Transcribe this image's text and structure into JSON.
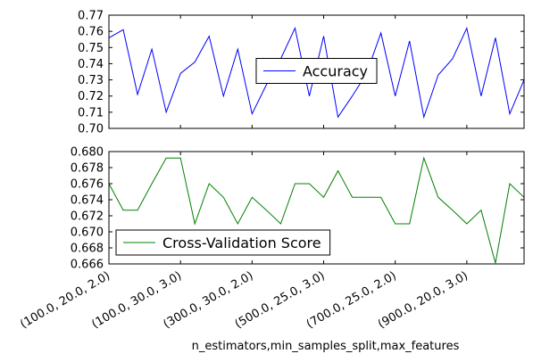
{
  "chart_data": [
    {
      "type": "line",
      "series": [
        {
          "name": "Accuracy",
          "color": "#0000ff",
          "values": [
            0.756,
            0.761,
            0.721,
            0.749,
            0.71,
            0.734,
            0.741,
            0.757,
            0.72,
            0.749,
            0.709,
            0.727,
            0.743,
            0.762,
            0.72,
            0.757,
            0.707,
            0.72,
            0.734,
            0.759,
            0.72,
            0.754,
            0.707,
            0.733,
            0.743,
            0.762,
            0.72,
            0.756,
            0.709,
            0.73
          ]
        }
      ],
      "ylim": [
        0.7,
        0.77
      ],
      "yticks": [
        {
          "value": 0.7,
          "label": "0.70"
        },
        {
          "value": 0.71,
          "label": "0.71"
        },
        {
          "value": 0.72,
          "label": "0.72"
        },
        {
          "value": 0.73,
          "label": "0.73"
        },
        {
          "value": 0.74,
          "label": "0.74"
        },
        {
          "value": 0.75,
          "label": "0.75"
        },
        {
          "value": 0.76,
          "label": "0.76"
        },
        {
          "value": 0.77,
          "label": "0.77"
        }
      ],
      "legend": "center"
    },
    {
      "type": "line",
      "categories": [
        "(100.0, 20.0, 2.0)",
        null,
        null,
        null,
        null,
        "(100.0, 30.0, 3.0)",
        null,
        null,
        null,
        null,
        "(300.0, 30.0, 2.0)",
        null,
        null,
        null,
        null,
        "(500.0, 25.0, 3.0)",
        null,
        null,
        null,
        null,
        "(700.0, 25.0, 2.0)",
        null,
        null,
        null,
        null,
        "(900.0, 20.0, 3.0)",
        null,
        null,
        null,
        null
      ],
      "series": [
        {
          "name": "Cross-Validation Score",
          "color": "#008000",
          "values": [
            0.676,
            0.6727,
            0.6727,
            0.676,
            0.6792,
            0.6792,
            0.671,
            0.676,
            0.6743,
            0.671,
            0.6743,
            0.6727,
            0.671,
            0.676,
            0.676,
            0.6743,
            0.6776,
            0.6743,
            0.6743,
            0.6743,
            0.671,
            0.671,
            0.6792,
            0.6743,
            0.6727,
            0.671,
            0.6727,
            0.6661,
            0.676,
            0.6743
          ]
        }
      ],
      "ylim": [
        0.666,
        0.68
      ],
      "yticks": [
        {
          "value": 0.666,
          "label": "0.666"
        },
        {
          "value": 0.668,
          "label": "0.668"
        },
        {
          "value": 0.67,
          "label": "0.670"
        },
        {
          "value": 0.672,
          "label": "0.672"
        },
        {
          "value": 0.674,
          "label": "0.674"
        },
        {
          "value": 0.676,
          "label": "0.676"
        },
        {
          "value": 0.678,
          "label": "0.678"
        },
        {
          "value": 0.68,
          "label": "0.680"
        }
      ],
      "xlabel": "n_estimators,min_samples_split,max_features",
      "legend": "lower left"
    }
  ]
}
